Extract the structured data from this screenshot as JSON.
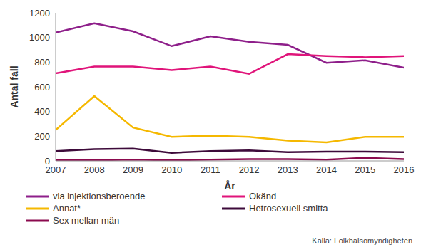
{
  "chart_data": {
    "type": "line",
    "x_label": "År",
    "y_label": "Antal fall",
    "annotations": [
      "Källa: Folkhälsomyndigheten"
    ],
    "x": [
      2007,
      2008,
      2009,
      2010,
      2011,
      2012,
      2013,
      2014,
      2015,
      2016
    ],
    "xlim": [
      2007,
      2016
    ],
    "xticks": [
      2007,
      2008,
      2009,
      2010,
      2011,
      2012,
      2013,
      2014,
      2015,
      2016
    ],
    "ylim": [
      0,
      1200
    ],
    "yticks": [
      0,
      200,
      400,
      600,
      800,
      1000,
      1200
    ],
    "grid": false,
    "legend": "bottom",
    "series": [
      {
        "name": "via injektionsberoende",
        "color": "#8e1f8a",
        "values": [
          1040,
          1115,
          1050,
          930,
          1010,
          965,
          940,
          795,
          815,
          755
        ]
      },
      {
        "name": "Okänd",
        "color": "#e0147a",
        "values": [
          710,
          765,
          765,
          735,
          765,
          705,
          865,
          850,
          840,
          850
        ]
      },
      {
        "name": "Annat*",
        "color": "#f5b800",
        "values": [
          250,
          525,
          270,
          195,
          205,
          195,
          165,
          150,
          195,
          195
        ]
      },
      {
        "name": "Hetrosexuell smitta",
        "color": "#3d0a3a",
        "values": [
          80,
          95,
          100,
          65,
          80,
          85,
          70,
          75,
          75,
          70
        ]
      },
      {
        "name": "Sex mellan män",
        "color": "#8b0a4e",
        "values": [
          5,
          5,
          10,
          5,
          10,
          15,
          15,
          10,
          25,
          15
        ]
      }
    ]
  }
}
